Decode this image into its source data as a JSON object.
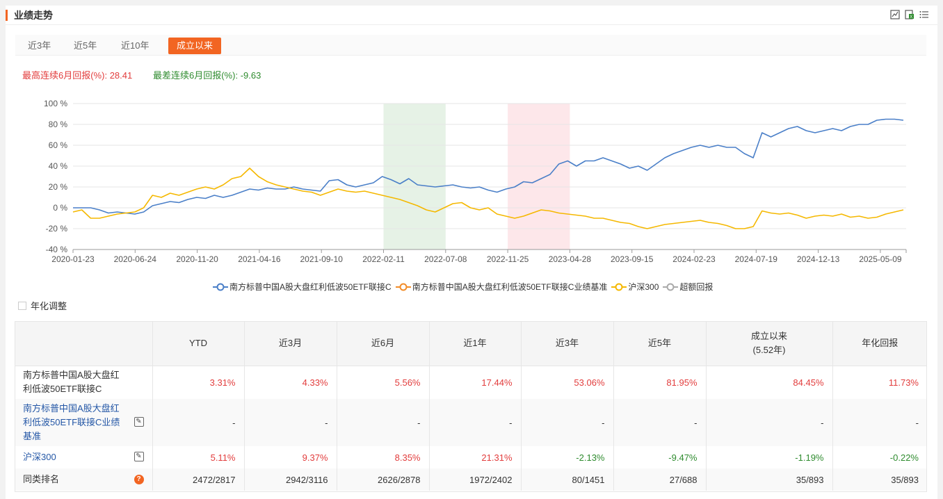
{
  "header": {
    "title": "业绩走势",
    "icons": [
      "chart-toggle-icon",
      "excel-export-icon",
      "list-menu-icon"
    ]
  },
  "tabs": [
    {
      "label": "近3年",
      "active": false
    },
    {
      "label": "近5年",
      "active": false
    },
    {
      "label": "近10年",
      "active": false
    },
    {
      "label": "成立以来",
      "active": true
    }
  ],
  "stats": {
    "max_label": "最高连续6月回报(%):",
    "max_value": "28.41",
    "min_label": "最差连续6月回报(%):",
    "min_value": "-9.63"
  },
  "chart_data": {
    "type": "line",
    "y_ticks": [
      "100 %",
      "80 %",
      "60 %",
      "40 %",
      "20 %",
      "0 %",
      "-20 %",
      "-40 %"
    ],
    "ylim": [
      -40,
      100
    ],
    "x_ticks": [
      "2020-01-23",
      "2020-06-24",
      "2020-11-20",
      "2021-04-16",
      "2021-09-10",
      "2022-02-11",
      "2022-07-08",
      "2022-11-25",
      "2023-04-28",
      "2023-09-15",
      "2024-02-23",
      "2024-07-19",
      "2024-12-13",
      "2025-05-09"
    ],
    "grid": true,
    "shaded_ranges": [
      {
        "from": "2022-02-11",
        "to": "2022-07-08",
        "color": "#e6f2e6"
      },
      {
        "from": "2022-11-25",
        "to": "2023-04-28",
        "color": "#fde7ea"
      }
    ],
    "series": [
      {
        "name": "南方标普中国A股大盘红利低波50ETF联接C",
        "color": "#4a7fc8",
        "values": [
          0,
          0,
          0,
          -2,
          -5,
          -4,
          -5,
          -6,
          -4,
          2,
          4,
          6,
          5,
          8,
          10,
          9,
          12,
          10,
          12,
          15,
          18,
          17,
          19,
          18,
          18,
          20,
          18,
          17,
          16,
          26,
          27,
          22,
          20,
          22,
          24,
          30,
          27,
          23,
          28,
          22,
          21,
          20,
          21,
          22,
          20,
          19,
          20,
          17,
          15,
          18,
          20,
          25,
          24,
          28,
          32,
          42,
          45,
          40,
          45,
          45,
          48,
          45,
          42,
          38,
          40,
          36,
          42,
          48,
          52,
          55,
          58,
          60,
          58,
          60,
          58,
          58,
          52,
          48,
          72,
          68,
          72,
          76,
          78,
          74,
          72,
          74,
          76,
          74,
          78,
          80,
          80,
          84,
          85,
          85,
          84
        ]
      },
      {
        "name": "南方标普中国A股大盘红利低波50ETF联接C业绩基准",
        "color": "#f28c28",
        "values": []
      },
      {
        "name": "沪深300",
        "color": "#f5b800",
        "values": [
          -4,
          -2,
          -10,
          -10,
          -8,
          -6,
          -5,
          -4,
          0,
          12,
          10,
          14,
          12,
          15,
          18,
          20,
          18,
          22,
          28,
          30,
          38,
          30,
          25,
          22,
          20,
          18,
          16,
          15,
          12,
          15,
          18,
          16,
          15,
          16,
          14,
          12,
          10,
          8,
          5,
          2,
          -2,
          -4,
          0,
          4,
          5,
          0,
          -2,
          0,
          -6,
          -8,
          -10,
          -8,
          -5,
          -2,
          -3,
          -5,
          -6,
          -7,
          -8,
          -10,
          -10,
          -12,
          -14,
          -15,
          -18,
          -20,
          -18,
          -16,
          -15,
          -14,
          -13,
          -12,
          -14,
          -15,
          -17,
          -20,
          -20,
          -18,
          -3,
          -5,
          -6,
          -5,
          -7,
          -10,
          -8,
          -7,
          -8,
          -6,
          -9,
          -8,
          -10,
          -9,
          -6,
          -4,
          -2
        ]
      },
      {
        "name": "超额回报",
        "color": "#aaaaaa",
        "values": []
      }
    ]
  },
  "annualize": {
    "label": "年化调整"
  },
  "table": {
    "headers": [
      "YTD",
      "近3月",
      "近6月",
      "近1年",
      "近3年",
      "近5年",
      "成立以来",
      "年化回报"
    ],
    "since_note": "(5.52年)",
    "rows": [
      {
        "name": "南方标普中国A股大盘红利低波50ETF联接C",
        "values": [
          "3.31%",
          "4.33%",
          "5.56%",
          "17.44%",
          "53.06%",
          "81.95%",
          "84.45%",
          "11.73%"
        ],
        "colors": [
          "red",
          "red",
          "red",
          "red",
          "red",
          "red",
          "red",
          "red"
        ]
      },
      {
        "name": "南方标普中国A股大盘红利低波50ETF联接C业绩基准",
        "values": [
          "-",
          "-",
          "-",
          "-",
          "-",
          "-",
          "-",
          "-"
        ],
        "colors": [
          "",
          "",
          "",
          "",
          "",
          "",
          "",
          ""
        ]
      },
      {
        "name": "沪深300",
        "values": [
          "5.11%",
          "9.37%",
          "8.35%",
          "21.31%",
          "-2.13%",
          "-9.47%",
          "-1.19%",
          "-0.22%"
        ],
        "colors": [
          "red",
          "red",
          "red",
          "red",
          "green",
          "green",
          "green",
          "green"
        ]
      },
      {
        "name": "同类排名",
        "values": [
          "2472/2817",
          "2942/3116",
          "2626/2878",
          "1972/2402",
          "80/1451",
          "27/688",
          "35/893",
          "35/893"
        ],
        "colors": [
          "",
          "",
          "",
          "",
          "",
          "",
          "",
          ""
        ]
      }
    ]
  }
}
